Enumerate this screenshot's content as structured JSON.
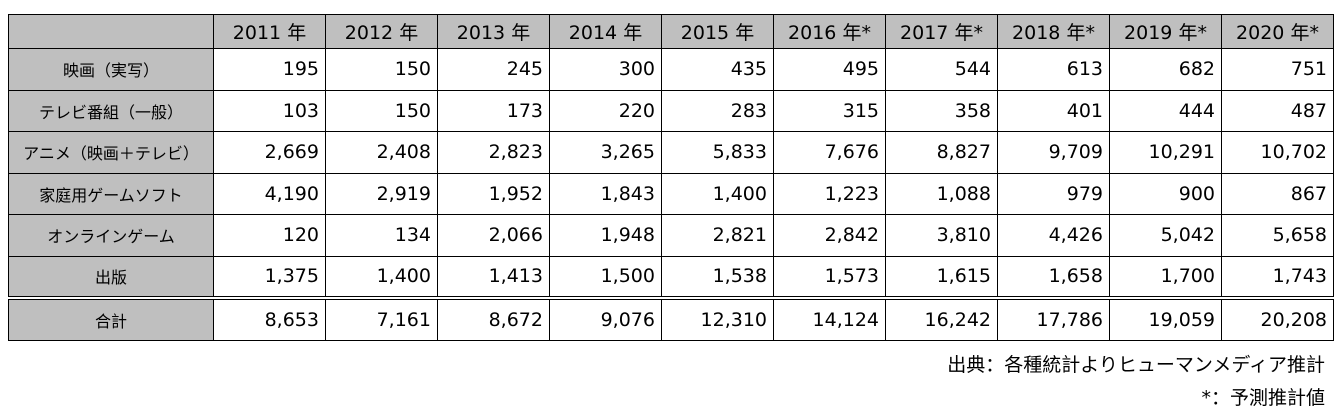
{
  "table": {
    "header": [
      "2011 年",
      "2012 年",
      "2013 年",
      "2014 年",
      "2015 年",
      "2016 年*",
      "2017 年*",
      "2018 年*",
      "2019 年*",
      "2020 年*"
    ],
    "rows": [
      {
        "label": "映画（実写）",
        "values": [
          "195",
          "150",
          "245",
          "300",
          "435",
          "495",
          "544",
          "613",
          "682",
          "751"
        ]
      },
      {
        "label": "テレビ番組（一般）",
        "values": [
          "103",
          "150",
          "173",
          "220",
          "283",
          "315",
          "358",
          "401",
          "444",
          "487"
        ]
      },
      {
        "label": "アニメ（映画＋テレビ）",
        "values": [
          "2,669",
          "2,408",
          "2,823",
          "3,265",
          "5,833",
          "7,676",
          "8,827",
          "9,709",
          "10,291",
          "10,702"
        ]
      },
      {
        "label": "家庭用ゲームソフト",
        "values": [
          "4,190",
          "2,919",
          "1,952",
          "1,843",
          "1,400",
          "1,223",
          "1,088",
          "979",
          "900",
          "867"
        ]
      },
      {
        "label": "オンラインゲーム",
        "values": [
          "120",
          "134",
          "2,066",
          "1,948",
          "2,821",
          "2,842",
          "3,810",
          "4,426",
          "5,042",
          "5,658"
        ]
      },
      {
        "label": "出版",
        "values": [
          "1,375",
          "1,400",
          "1,413",
          "1,500",
          "1,538",
          "1,573",
          "1,615",
          "1,658",
          "1,700",
          "1,743"
        ]
      },
      {
        "label": "合計",
        "values": [
          "8,653",
          "7,161",
          "8,672",
          "9,076",
          "12,310",
          "14,124",
          "16,242",
          "17,786",
          "19,059",
          "20,208"
        ]
      }
    ]
  },
  "notes": [
    "出典：各種統計よりヒューマンメディア推計",
    "*：予測推計値"
  ]
}
